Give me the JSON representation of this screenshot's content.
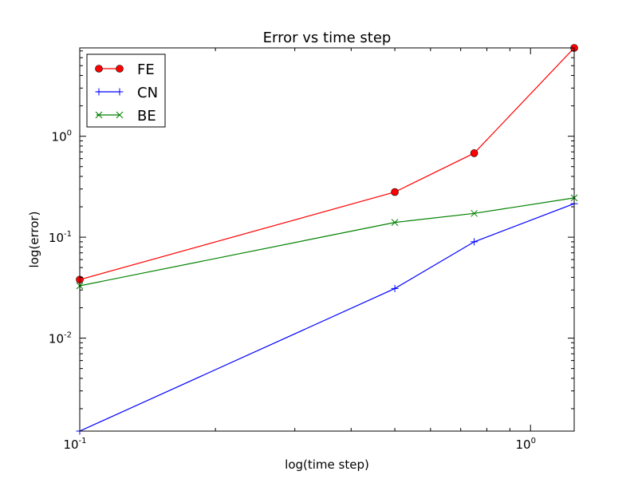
{
  "chart_data": {
    "type": "line",
    "title": "Error vs time step",
    "xlabel": "log(time step)",
    "ylabel": "log(error)",
    "xscale": "log",
    "yscale": "log",
    "xlim": [
      0.1,
      1.25
    ],
    "ylim": [
      0.0012,
      7.5
    ],
    "grid": false,
    "legend_position": "top-left",
    "x_ticks": [
      {
        "value": 0.1,
        "base": "10",
        "exp": "-1"
      },
      {
        "value": 1.0,
        "base": "10",
        "exp": "0"
      }
    ],
    "y_ticks": [
      {
        "value": 0.01,
        "base": "10",
        "exp": "-2"
      },
      {
        "value": 0.1,
        "base": "10",
        "exp": "-1"
      },
      {
        "value": 1.0,
        "base": "10",
        "exp": "0"
      }
    ],
    "series": [
      {
        "name": "FE",
        "color": "#ff0000",
        "marker": "circle",
        "x": [
          0.1,
          0.5,
          0.75,
          1.25
        ],
        "y": [
          0.038,
          0.28,
          0.68,
          7.5
        ]
      },
      {
        "name": "CN",
        "color": "#0000ff",
        "marker": "plus",
        "x": [
          0.1,
          0.5,
          0.75,
          1.25
        ],
        "y": [
          0.0012,
          0.031,
          0.09,
          0.215
        ]
      },
      {
        "name": "BE",
        "color": "#008000",
        "marker": "x",
        "x": [
          0.1,
          0.5,
          0.75,
          1.25
        ],
        "y": [
          0.033,
          0.14,
          0.172,
          0.245
        ]
      }
    ]
  }
}
